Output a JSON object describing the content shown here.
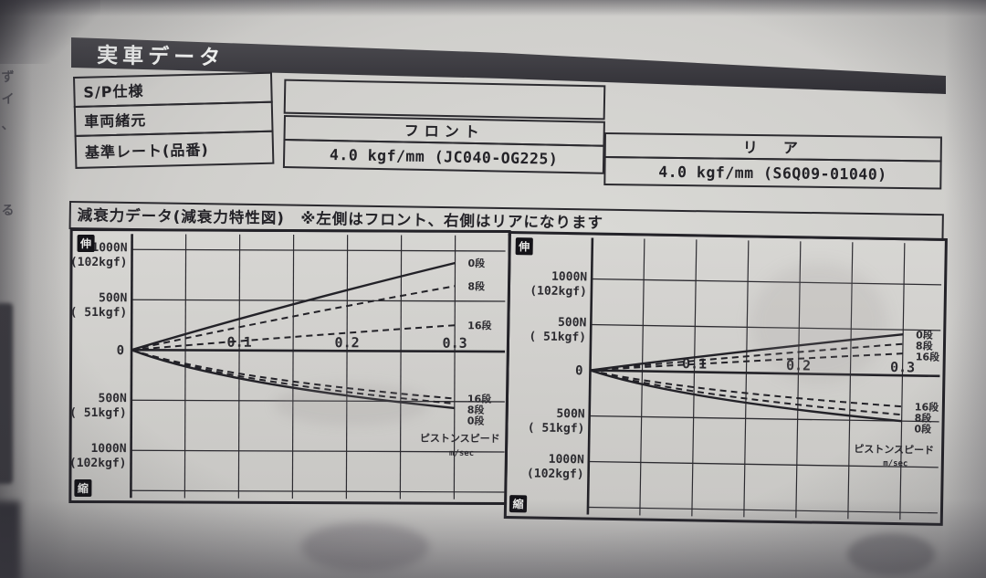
{
  "page": {
    "title_banner": "実車データ",
    "margin_chars": [
      "ず",
      "イ",
      "、",
      "る"
    ],
    "spec_table": {
      "rows": [
        "S/P仕様",
        "車両緒元",
        "基準レート(品番)"
      ],
      "front": {
        "header": "フロント",
        "value": "4.0 kgf/mm (JC040-OG225)"
      },
      "rear": {
        "header": "リ　ア",
        "value": "4.0 kgf/mm (S6Q09-01040)"
      }
    },
    "section_bar": "減衰力データ(減衰力特性図)　※左側はフロント、右側はリアになります"
  },
  "chart_data": [
    {
      "type": "line",
      "position_note": "左側はフロント",
      "xlabel": "ピストンスピード",
      "xunit": "m/sec",
      "x_ticks": [
        0.1,
        0.2,
        0.3
      ],
      "xlim": [
        0,
        0.32
      ],
      "ylim_N": [
        -1250,
        1250
      ],
      "grid": "on",
      "extension_label": "伸",
      "compression_label": "縮",
      "y_axis_labels": [
        {
          "line1": "1000N",
          "line2": "(102kgf)",
          "N": 1000
        },
        {
          "line1": "500N",
          "line2": "( 51kgf)",
          "N": 500
        },
        {
          "line1": "0",
          "N": 0
        },
        {
          "line1": "500N",
          "line2": "( 51kgf)",
          "N": -500
        },
        {
          "line1": "1000N",
          "line2": "(102kgf)",
          "N": -1000
        }
      ],
      "series": [
        {
          "name": "伸側 0段",
          "label": "0段",
          "style": "solid",
          "end_x": 0.3,
          "end_N": 880
        },
        {
          "name": "伸側 8段",
          "label": "8段",
          "style": "dashed",
          "end_x": 0.3,
          "end_N": 650
        },
        {
          "name": "伸側 16段",
          "label": "16段",
          "style": "dashed",
          "end_x": 0.3,
          "end_N": 260
        },
        {
          "name": "縮側 16段",
          "label": "16段",
          "style": "dashed",
          "end_x": 0.3,
          "end_N": -470
        },
        {
          "name": "縮側 8段",
          "label": "8段",
          "style": "dashed",
          "end_x": 0.3,
          "end_N": -520
        },
        {
          "name": "縮側 0段",
          "label": "0段",
          "style": "solid",
          "end_x": 0.3,
          "end_N": -565
        }
      ]
    },
    {
      "type": "line",
      "position_note": "右側はリア",
      "xlabel": "ピストンスピード",
      "xunit": "m/sec",
      "x_ticks": [
        0.1,
        0.2,
        0.3
      ],
      "xlim": [
        0,
        0.32
      ],
      "ylim_N": [
        -1250,
        1250
      ],
      "grid": "on",
      "extension_label": "伸",
      "compression_label": "縮",
      "y_axis_labels": [
        {
          "line1": "1000N",
          "line2": "(102kgf)",
          "N": 1000
        },
        {
          "line1": "500N",
          "line2": "( 51kgf)",
          "N": 500
        },
        {
          "line1": "0",
          "N": 0
        },
        {
          "line1": "500N",
          "line2": "( 51kgf)",
          "N": -500
        },
        {
          "line1": "1000N",
          "line2": "(102kgf)",
          "N": -1000
        }
      ],
      "series": [
        {
          "name": "伸側 0段",
          "label": "0段",
          "style": "solid",
          "end_x": 0.3,
          "end_N": 450
        },
        {
          "name": "伸側 8段",
          "label": "8段",
          "style": "dashed",
          "end_x": 0.3,
          "end_N": 345
        },
        {
          "name": "伸側 16段",
          "label": "16段",
          "style": "dashed",
          "end_x": 0.3,
          "end_N": 240
        },
        {
          "name": "縮側 16段",
          "label": "16段",
          "style": "dashed",
          "end_x": 0.3,
          "end_N": -340
        },
        {
          "name": "縮側 8段",
          "label": "8段",
          "style": "dashed",
          "end_x": 0.3,
          "end_N": -430
        },
        {
          "name": "縮側 0段",
          "label": "0段",
          "style": "solid",
          "end_x": 0.3,
          "end_N": -500
        }
      ]
    }
  ]
}
